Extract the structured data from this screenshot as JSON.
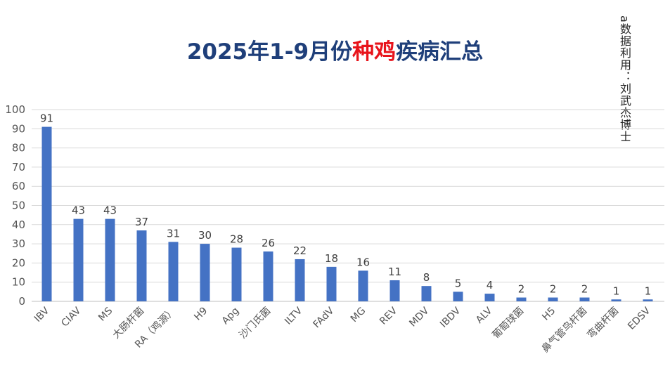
{
  "title": {
    "prefix": "2025年1-9月份",
    "accent": "种鸡",
    "suffix": "疾病汇总"
  },
  "side_note": "a数据利用：刘武杰博士",
  "colors": {
    "bar": "#4472c4",
    "title": "#1f3f7a",
    "accent": "#e8141b",
    "grid": "#d9d9d9"
  },
  "chart_data": {
    "type": "bar",
    "categories": [
      "IBV",
      "CIAV",
      "MS",
      "大肠杆菌",
      "RA（鸡源）",
      "H9",
      "Apg",
      "沙门氏菌",
      "ILTV",
      "FAdV",
      "MG",
      "REV",
      "MDV",
      "IBDV",
      "ALV",
      "葡萄球菌",
      "H5",
      "鼻气管鸟杆菌",
      "弯曲杆菌",
      "EDSV"
    ],
    "values": [
      91,
      43,
      43,
      37,
      31,
      30,
      28,
      26,
      22,
      18,
      16,
      11,
      8,
      5,
      4,
      2,
      2,
      2,
      1,
      1
    ],
    "ylim": [
      0,
      100
    ],
    "yticks": [
      0,
      10,
      20,
      30,
      40,
      50,
      60,
      70,
      80,
      90,
      100
    ],
    "grid": true,
    "legend": "none",
    "data_labels": true
  }
}
